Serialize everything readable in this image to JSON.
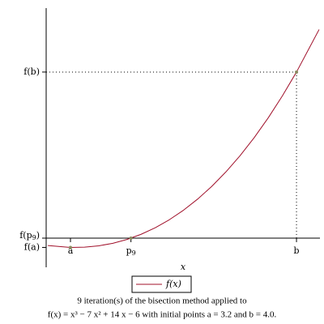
{
  "chart_data": {
    "type": "line",
    "x_label": "x",
    "caption": [
      "9 iteration(s) of the bisection method applied to",
      "f(x) = x³ − 7 x² + 14 x − 6 with initial points a = 3.2 and b = 4.0."
    ],
    "x": [
      3.12,
      3.2,
      3.25,
      3.3,
      3.35,
      3.4,
      3.45,
      3.5,
      3.55,
      3.6,
      3.65,
      3.7,
      3.75,
      3.8,
      3.85,
      3.9,
      3.95,
      4.0,
      4.08
    ],
    "series": [
      {
        "name": "f(x)",
        "color": "#a0102a",
        "values": [
          -0.0895,
          -0.112,
          -0.109,
          -0.093,
          -0.062,
          -0.016,
          0.046,
          0.125,
          0.2215,
          0.336,
          0.4697,
          0.623,
          0.797,
          0.992,
          1.2085,
          1.449,
          1.7125,
          2,
          2.512
        ]
      }
    ],
    "xlim": [
      3.114,
      4.083
    ],
    "ylim": [
      -0.25,
      2.77
    ],
    "xticks": [
      {
        "value": 3.2,
        "label": "a"
      },
      {
        "value": 3.4140625,
        "label": "p9"
      },
      {
        "value": 4.0,
        "label": "b"
      }
    ],
    "yticks": [
      {
        "value": 2,
        "label": "f(b)"
      },
      {
        "value": -0.0002,
        "label": "f(p9)"
      },
      {
        "value": -0.112,
        "label": "f(a)"
      }
    ],
    "marker_color": "#8a8a60"
  }
}
